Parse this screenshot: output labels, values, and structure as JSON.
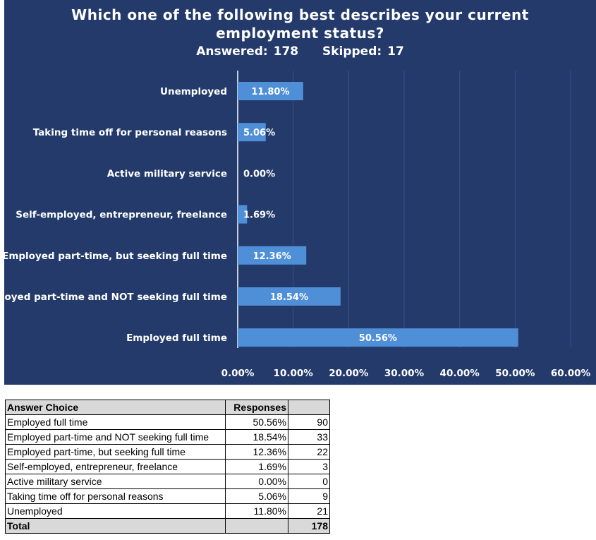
{
  "colors": {
    "panel": "#233a6b",
    "bar": "#4f8fd8",
    "grid": "#3a5283",
    "axis": "#ffffff",
    "table_header": "#d9d9d9"
  },
  "chart_data": {
    "type": "bar",
    "orientation": "horizontal",
    "title_lines": [
      "Which one of the following best describes your current",
      "employment status?"
    ],
    "answered_label": "Answered:",
    "answered_value": "178",
    "skipped_label": "Skipped:",
    "skipped_value": "17",
    "categories": [
      "Unemployed",
      "Taking time off for personal reasons",
      "Active military service",
      "Self-employed, entrepreneur, freelance",
      "Employed part-time, but seeking full time",
      "Employed part-time and NOT seeking full time",
      "Employed full time"
    ],
    "values": [
      11.8,
      5.06,
      0.0,
      1.69,
      12.36,
      18.54,
      50.56
    ],
    "value_labels": [
      "11.80%",
      "5.06%",
      "0.00%",
      "1.69%",
      "12.36%",
      "18.54%",
      "50.56%"
    ],
    "xlim": [
      0,
      60
    ],
    "x_ticks": [
      0,
      10,
      20,
      30,
      40,
      50,
      60
    ],
    "x_tick_labels": [
      "0.00%",
      "10.00%",
      "20.00%",
      "30.00%",
      "40.00%",
      "50.00%",
      "60.00%"
    ],
    "grid": true,
    "legend": "none"
  },
  "table": {
    "headers": [
      "Answer Choice",
      "Responses",
      ""
    ],
    "rows": [
      {
        "choice": "Employed full time",
        "percent": "50.56%",
        "count": "90"
      },
      {
        "choice": "Employed part-time and NOT seeking full time",
        "percent": "18.54%",
        "count": "33"
      },
      {
        "choice": "Employed part-time, but seeking full time",
        "percent": "12.36%",
        "count": "22"
      },
      {
        "choice": "Self-employed, entrepreneur, freelance",
        "percent": "1.69%",
        "count": "3"
      },
      {
        "choice": "Active military service",
        "percent": "0.00%",
        "count": "0"
      },
      {
        "choice": "Taking time off for personal reasons",
        "percent": "5.06%",
        "count": "9"
      },
      {
        "choice": "Unemployed",
        "percent": "11.80%",
        "count": "21"
      }
    ],
    "total": {
      "label": "Total",
      "percent": "",
      "count": "178"
    }
  }
}
